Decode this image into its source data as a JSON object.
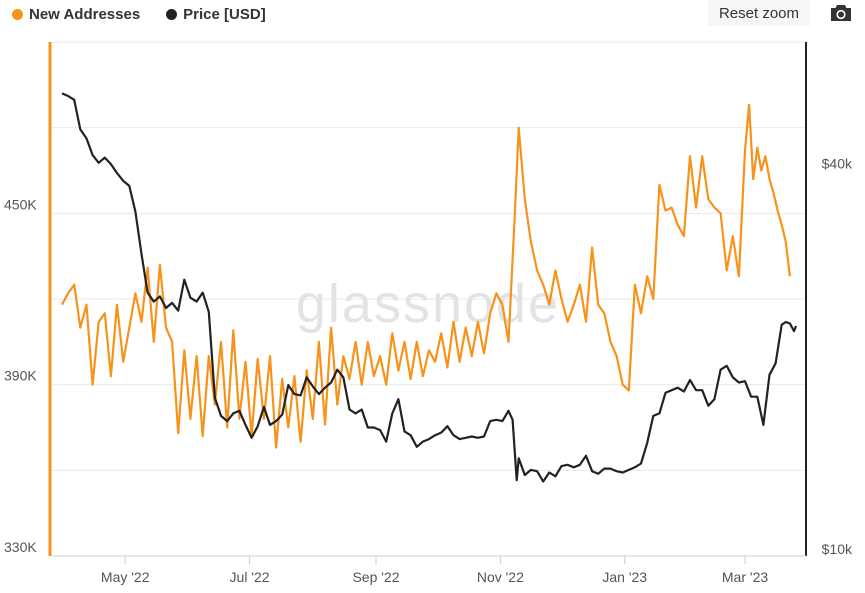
{
  "legend": [
    {
      "label": "New Addresses",
      "color": "#f7931a"
    },
    {
      "label": "Price [USD]",
      "color": "#222222"
    }
  ],
  "toolbar": {
    "reset_label": "Reset zoom",
    "camera_icon": "camera-icon"
  },
  "watermark": "glassnode",
  "colors": {
    "orange": "#f7931a",
    "black": "#222222",
    "grid": "#e9e9e9"
  },
  "chart_data": {
    "type": "line",
    "x_range": [
      "2022-03-31",
      "2023-03-26"
    ],
    "x_ticks": [
      {
        "label": "May '22",
        "date": "2022-05-01"
      },
      {
        "label": "Jul '22",
        "date": "2022-07-01"
      },
      {
        "label": "Sep '22",
        "date": "2022-09-01"
      },
      {
        "label": "Nov '22",
        "date": "2022-11-01"
      },
      {
        "label": "Jan '23",
        "date": "2023-01-01"
      },
      {
        "label": "Mar '23",
        "date": "2023-03-01"
      }
    ],
    "y_left": {
      "range": [
        330000,
        510000
      ],
      "ticks": [
        {
          "label": "330K",
          "value": 330000
        },
        {
          "label": "390K",
          "value": 390000
        },
        {
          "label": "450K",
          "value": 450000
        }
      ]
    },
    "y_right": {
      "range": [
        10000,
        50000
      ],
      "ticks": [
        {
          "label": "$10k",
          "value": 10000
        },
        {
          "label": "$40k",
          "value": 40000
        }
      ]
    },
    "series": [
      {
        "name": "New Addresses",
        "axis": "left",
        "color": "#f7931a",
        "points": [
          [
            "2022-03-31",
            418000
          ],
          [
            "2022-04-03",
            422000
          ],
          [
            "2022-04-06",
            425000
          ],
          [
            "2022-04-09",
            410000
          ],
          [
            "2022-04-12",
            418000
          ],
          [
            "2022-04-15",
            390000
          ],
          [
            "2022-04-18",
            412000
          ],
          [
            "2022-04-21",
            415000
          ],
          [
            "2022-04-24",
            393000
          ],
          [
            "2022-04-27",
            418000
          ],
          [
            "2022-04-30",
            398000
          ],
          [
            "2022-05-03",
            410000
          ],
          [
            "2022-05-06",
            422000
          ],
          [
            "2022-05-09",
            412000
          ],
          [
            "2022-05-12",
            431000
          ],
          [
            "2022-05-15",
            405000
          ],
          [
            "2022-05-18",
            432000
          ],
          [
            "2022-05-21",
            410000
          ],
          [
            "2022-05-24",
            405000
          ],
          [
            "2022-05-27",
            373000
          ],
          [
            "2022-05-30",
            402000
          ],
          [
            "2022-06-02",
            378000
          ],
          [
            "2022-06-05",
            400000
          ],
          [
            "2022-06-08",
            372000
          ],
          [
            "2022-06-11",
            400000
          ],
          [
            "2022-06-14",
            383000
          ],
          [
            "2022-06-17",
            405000
          ],
          [
            "2022-06-20",
            375000
          ],
          [
            "2022-06-23",
            409000
          ],
          [
            "2022-06-26",
            378000
          ],
          [
            "2022-06-29",
            398000
          ],
          [
            "2022-07-02",
            372000
          ],
          [
            "2022-07-05",
            399000
          ],
          [
            "2022-07-08",
            378000
          ],
          [
            "2022-07-11",
            400000
          ],
          [
            "2022-07-14",
            368000
          ],
          [
            "2022-07-17",
            392000
          ],
          [
            "2022-07-20",
            375000
          ],
          [
            "2022-07-23",
            393000
          ],
          [
            "2022-07-26",
            370000
          ],
          [
            "2022-07-29",
            395000
          ],
          [
            "2022-08-01",
            378000
          ],
          [
            "2022-08-04",
            405000
          ],
          [
            "2022-08-07",
            376000
          ],
          [
            "2022-08-10",
            410000
          ],
          [
            "2022-08-13",
            383000
          ],
          [
            "2022-08-16",
            400000
          ],
          [
            "2022-08-19",
            392000
          ],
          [
            "2022-08-22",
            405000
          ],
          [
            "2022-08-25",
            390000
          ],
          [
            "2022-08-28",
            405000
          ],
          [
            "2022-08-31",
            393000
          ],
          [
            "2022-09-03",
            400000
          ],
          [
            "2022-09-06",
            390000
          ],
          [
            "2022-09-09",
            408000
          ],
          [
            "2022-09-12",
            395000
          ],
          [
            "2022-09-15",
            405000
          ],
          [
            "2022-09-18",
            392000
          ],
          [
            "2022-09-21",
            405000
          ],
          [
            "2022-09-24",
            393000
          ],
          [
            "2022-09-27",
            402000
          ],
          [
            "2022-09-30",
            398000
          ],
          [
            "2022-10-03",
            408000
          ],
          [
            "2022-10-06",
            396000
          ],
          [
            "2022-10-09",
            412000
          ],
          [
            "2022-10-12",
            398000
          ],
          [
            "2022-10-15",
            410000
          ],
          [
            "2022-10-18",
            400000
          ],
          [
            "2022-10-21",
            412000
          ],
          [
            "2022-10-24",
            401000
          ],
          [
            "2022-10-27",
            415000
          ],
          [
            "2022-10-30",
            422000
          ],
          [
            "2022-11-02",
            418000
          ],
          [
            "2022-11-05",
            405000
          ],
          [
            "2022-11-08",
            448000
          ],
          [
            "2022-11-10",
            480000
          ],
          [
            "2022-11-13",
            455000
          ],
          [
            "2022-11-16",
            440000
          ],
          [
            "2022-11-19",
            430000
          ],
          [
            "2022-11-22",
            425000
          ],
          [
            "2022-11-25",
            418000
          ],
          [
            "2022-11-28",
            430000
          ],
          [
            "2022-12-01",
            420000
          ],
          [
            "2022-12-04",
            412000
          ],
          [
            "2022-12-07",
            418000
          ],
          [
            "2022-12-10",
            425000
          ],
          [
            "2022-12-13",
            412000
          ],
          [
            "2022-12-16",
            438000
          ],
          [
            "2022-12-19",
            418000
          ],
          [
            "2022-12-22",
            415000
          ],
          [
            "2022-12-25",
            405000
          ],
          [
            "2022-12-28",
            400000
          ],
          [
            "2022-12-31",
            390000
          ],
          [
            "2023-01-03",
            388000
          ],
          [
            "2023-01-06",
            425000
          ],
          [
            "2023-01-09",
            415000
          ],
          [
            "2023-01-12",
            428000
          ],
          [
            "2023-01-15",
            420000
          ],
          [
            "2023-01-18",
            460000
          ],
          [
            "2023-01-21",
            451000
          ],
          [
            "2023-01-24",
            452000
          ],
          [
            "2023-01-27",
            446000
          ],
          [
            "2023-01-30",
            442000
          ],
          [
            "2023-02-02",
            470000
          ],
          [
            "2023-02-05",
            452000
          ],
          [
            "2023-02-08",
            470000
          ],
          [
            "2023-02-11",
            455000
          ],
          [
            "2023-02-14",
            452000
          ],
          [
            "2023-02-17",
            450000
          ],
          [
            "2023-02-20",
            430000
          ],
          [
            "2023-02-23",
            442000
          ],
          [
            "2023-02-26",
            428000
          ],
          [
            "2023-03-01",
            472000
          ],
          [
            "2023-03-03",
            488000
          ],
          [
            "2023-03-05",
            462000
          ],
          [
            "2023-03-07",
            473000
          ],
          [
            "2023-03-09",
            465000
          ],
          [
            "2023-03-11",
            470000
          ],
          [
            "2023-03-13",
            462000
          ],
          [
            "2023-03-15",
            457000
          ],
          [
            "2023-03-17",
            451000
          ],
          [
            "2023-03-19",
            446000
          ],
          [
            "2023-03-21",
            440000
          ],
          [
            "2023-03-23",
            428000
          ]
        ]
      },
      {
        "name": "Price [USD]",
        "axis": "right",
        "color": "#222222",
        "points": [
          [
            "2022-03-31",
            46000
          ],
          [
            "2022-04-03",
            45800
          ],
          [
            "2022-04-06",
            45500
          ],
          [
            "2022-04-09",
            43200
          ],
          [
            "2022-04-12",
            42500
          ],
          [
            "2022-04-15",
            41200
          ],
          [
            "2022-04-18",
            40600
          ],
          [
            "2022-04-21",
            41000
          ],
          [
            "2022-04-24",
            40500
          ],
          [
            "2022-04-27",
            39800
          ],
          [
            "2022-04-30",
            39200
          ],
          [
            "2022-05-03",
            38800
          ],
          [
            "2022-05-06",
            36800
          ],
          [
            "2022-05-09",
            33500
          ],
          [
            "2022-05-12",
            30500
          ],
          [
            "2022-05-15",
            29800
          ],
          [
            "2022-05-18",
            30200
          ],
          [
            "2022-05-21",
            29300
          ],
          [
            "2022-05-24",
            29700
          ],
          [
            "2022-05-27",
            29100
          ],
          [
            "2022-05-30",
            31500
          ],
          [
            "2022-06-02",
            30100
          ],
          [
            "2022-06-05",
            29800
          ],
          [
            "2022-06-08",
            30500
          ],
          [
            "2022-06-11",
            29000
          ],
          [
            "2022-06-14",
            22300
          ],
          [
            "2022-06-17",
            20900
          ],
          [
            "2022-06-20",
            20500
          ],
          [
            "2022-06-23",
            21100
          ],
          [
            "2022-06-26",
            21300
          ],
          [
            "2022-06-29",
            20200
          ],
          [
            "2022-07-02",
            19200
          ],
          [
            "2022-07-05",
            20100
          ],
          [
            "2022-07-08",
            21600
          ],
          [
            "2022-07-11",
            20200
          ],
          [
            "2022-07-14",
            20500
          ],
          [
            "2022-07-17",
            21000
          ],
          [
            "2022-07-20",
            23300
          ],
          [
            "2022-07-23",
            22600
          ],
          [
            "2022-07-26",
            22500
          ],
          [
            "2022-07-29",
            23900
          ],
          [
            "2022-08-01",
            23200
          ],
          [
            "2022-08-04",
            22600
          ],
          [
            "2022-08-07",
            23100
          ],
          [
            "2022-08-10",
            23500
          ],
          [
            "2022-08-13",
            24500
          ],
          [
            "2022-08-16",
            23900
          ],
          [
            "2022-08-19",
            21400
          ],
          [
            "2022-08-22",
            21100
          ],
          [
            "2022-08-25",
            21400
          ],
          [
            "2022-08-28",
            20000
          ],
          [
            "2022-08-31",
            20000
          ],
          [
            "2022-09-03",
            19800
          ],
          [
            "2022-09-06",
            18900
          ],
          [
            "2022-09-09",
            21100
          ],
          [
            "2022-09-12",
            22200
          ],
          [
            "2022-09-15",
            19700
          ],
          [
            "2022-09-18",
            19400
          ],
          [
            "2022-09-21",
            18500
          ],
          [
            "2022-09-24",
            18900
          ],
          [
            "2022-09-27",
            19100
          ],
          [
            "2022-09-30",
            19400
          ],
          [
            "2022-10-03",
            19600
          ],
          [
            "2022-10-06",
            20100
          ],
          [
            "2022-10-09",
            19400
          ],
          [
            "2022-10-12",
            19100
          ],
          [
            "2022-10-15",
            19200
          ],
          [
            "2022-10-18",
            19300
          ],
          [
            "2022-10-21",
            19200
          ],
          [
            "2022-10-24",
            19300
          ],
          [
            "2022-10-27",
            20500
          ],
          [
            "2022-10-30",
            20600
          ],
          [
            "2022-11-02",
            20500
          ],
          [
            "2022-11-05",
            21300
          ],
          [
            "2022-11-07",
            20600
          ],
          [
            "2022-11-09",
            15900
          ],
          [
            "2022-11-10",
            17600
          ],
          [
            "2022-11-13",
            16300
          ],
          [
            "2022-11-16",
            16700
          ],
          [
            "2022-11-19",
            16600
          ],
          [
            "2022-11-22",
            15800
          ],
          [
            "2022-11-25",
            16500
          ],
          [
            "2022-11-28",
            16200
          ],
          [
            "2022-12-01",
            17000
          ],
          [
            "2022-12-04",
            17100
          ],
          [
            "2022-12-07",
            16900
          ],
          [
            "2022-12-10",
            17100
          ],
          [
            "2022-12-13",
            17800
          ],
          [
            "2022-12-16",
            16600
          ],
          [
            "2022-12-19",
            16400
          ],
          [
            "2022-12-22",
            16800
          ],
          [
            "2022-12-25",
            16800
          ],
          [
            "2022-12-28",
            16600
          ],
          [
            "2022-12-31",
            16500
          ],
          [
            "2023-01-03",
            16700
          ],
          [
            "2023-01-06",
            16900
          ],
          [
            "2023-01-09",
            17200
          ],
          [
            "2023-01-12",
            18800
          ],
          [
            "2023-01-15",
            20900
          ],
          [
            "2023-01-18",
            21100
          ],
          [
            "2023-01-21",
            22700
          ],
          [
            "2023-01-24",
            22900
          ],
          [
            "2023-01-27",
            23100
          ],
          [
            "2023-01-30",
            22800
          ],
          [
            "2023-02-02",
            23700
          ],
          [
            "2023-02-05",
            22900
          ],
          [
            "2023-02-08",
            22900
          ],
          [
            "2023-02-11",
            21700
          ],
          [
            "2023-02-14",
            22200
          ],
          [
            "2023-02-17",
            24500
          ],
          [
            "2023-02-20",
            24800
          ],
          [
            "2023-02-23",
            23900
          ],
          [
            "2023-02-26",
            23500
          ],
          [
            "2023-03-01",
            23600
          ],
          [
            "2023-03-04",
            22400
          ],
          [
            "2023-03-07",
            22400
          ],
          [
            "2023-03-10",
            20200
          ],
          [
            "2023-03-13",
            24100
          ],
          [
            "2023-03-16",
            25000
          ],
          [
            "2023-03-19",
            28000
          ],
          [
            "2023-03-21",
            28200
          ],
          [
            "2023-03-23",
            28100
          ],
          [
            "2023-03-25",
            27500
          ],
          [
            "2023-03-26",
            27900
          ]
        ]
      }
    ]
  }
}
